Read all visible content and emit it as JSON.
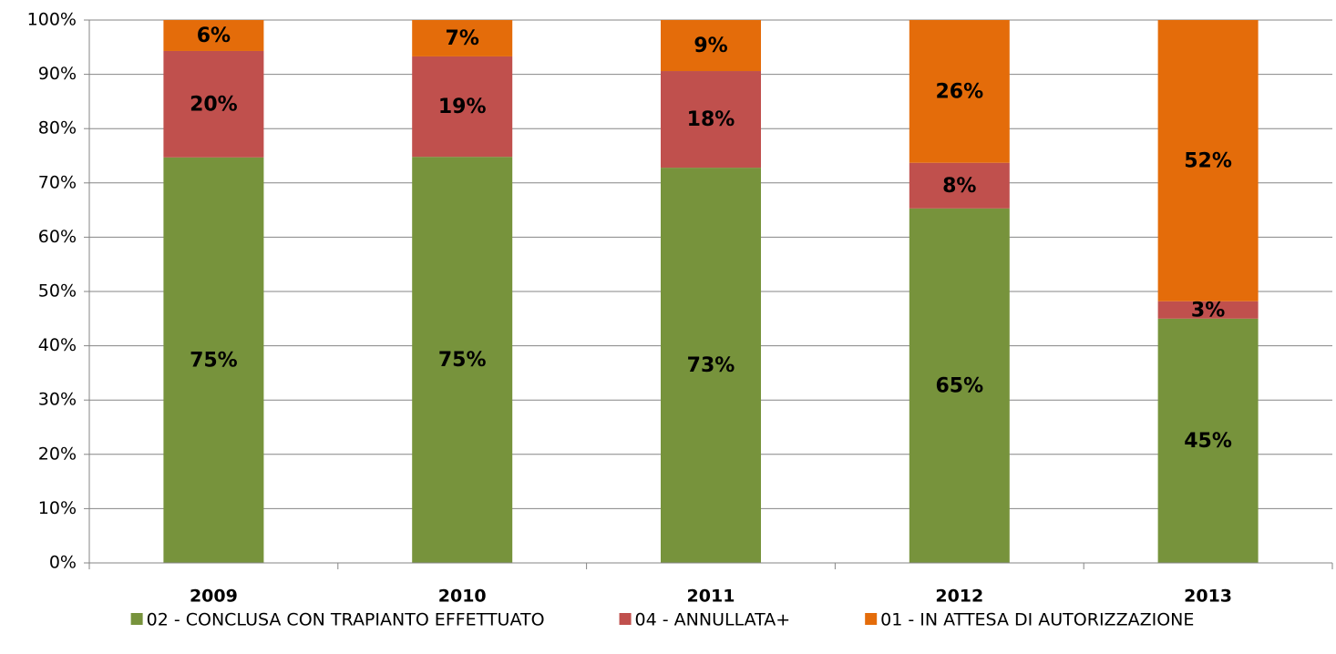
{
  "chart_data": {
    "type": "stacked_bar",
    "categories": [
      "2009",
      "2010",
      "2011",
      "2012",
      "2013"
    ],
    "series": [
      {
        "name": "02 - CONCLUSA CON TRAPIANTO EFFETTUATO",
        "color": "#77933c",
        "values": [
          74.7,
          74.8,
          72.8,
          65.3,
          45.0
        ],
        "value_labels": [
          "75%",
          "75%",
          "73%",
          "65%",
          "45%"
        ]
      },
      {
        "name": "04 - ANNULLATA+",
        "color": "#c0504d",
        "values": [
          19.6,
          18.5,
          17.8,
          8.4,
          3.2
        ],
        "value_labels": [
          "20%",
          "19%",
          "18%",
          "8%",
          "3%"
        ]
      },
      {
        "name": "01 - IN ATTESA DI AUTORIZZAZIONE",
        "color": "#e46c0a",
        "values": [
          5.7,
          6.7,
          9.4,
          26.3,
          51.8
        ],
        "value_labels": [
          "6%",
          "7%",
          "9%",
          "26%",
          "52%"
        ]
      }
    ],
    "ylim": [
      0,
      100
    ],
    "yticks": [
      {
        "value": 0,
        "label": "0%"
      },
      {
        "value": 10,
        "label": "10%"
      },
      {
        "value": 20,
        "label": "20%"
      },
      {
        "value": 30,
        "label": "30%"
      },
      {
        "value": 40,
        "label": "40%"
      },
      {
        "value": 50,
        "label": "50%"
      },
      {
        "value": 60,
        "label": "60%"
      },
      {
        "value": 70,
        "label": "70%"
      },
      {
        "value": 80,
        "label": "80%"
      },
      {
        "value": 90,
        "label": "90%"
      },
      {
        "value": 100,
        "label": "100%"
      }
    ],
    "grid": true,
    "legend": "bottom"
  }
}
